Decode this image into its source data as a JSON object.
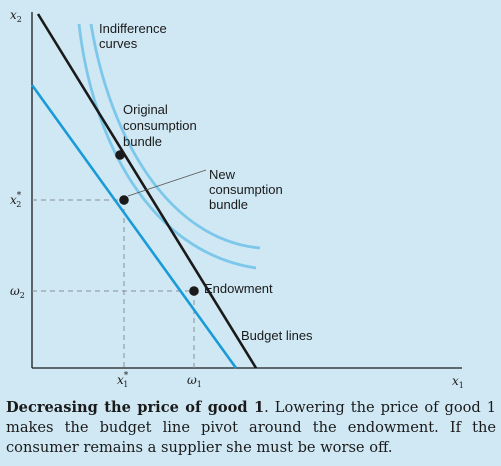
{
  "diagram": {
    "axes": {
      "y_axis_label": {
        "base": "x",
        "sub": "2"
      },
      "x_axis_label": {
        "base": "x",
        "sub": "1"
      },
      "y_ticks": [
        {
          "id": "x2star",
          "base": "x",
          "sub": "2",
          "sup": "*"
        },
        {
          "id": "omega2",
          "base": "ω",
          "sub": "2"
        }
      ],
      "x_ticks": [
        {
          "id": "x1star",
          "base": "x",
          "sub": "1",
          "sup": "*"
        },
        {
          "id": "omega1",
          "base": "ω",
          "sub": "1"
        }
      ]
    },
    "labels": {
      "indifference_curves": [
        "Indifference",
        "curves"
      ],
      "original_bundle": [
        "Original",
        "consumption",
        "bundle"
      ],
      "new_bundle": [
        "New",
        "consumption",
        "bundle"
      ],
      "endowment": "Endowment",
      "budget_lines": "Budget lines"
    },
    "colors": {
      "background": "#cfe8f4",
      "curve": "#7cc7ea",
      "new_budget_line": "#1a9ad6",
      "old_budget_line": "#1a1a1a"
    }
  },
  "caption": {
    "bold": "Decreasing the price of good 1",
    "text": ". Lowering the price of good 1 makes the budget line pivot around the endowment. If the consumer remains a supplier she must be worse off."
  }
}
